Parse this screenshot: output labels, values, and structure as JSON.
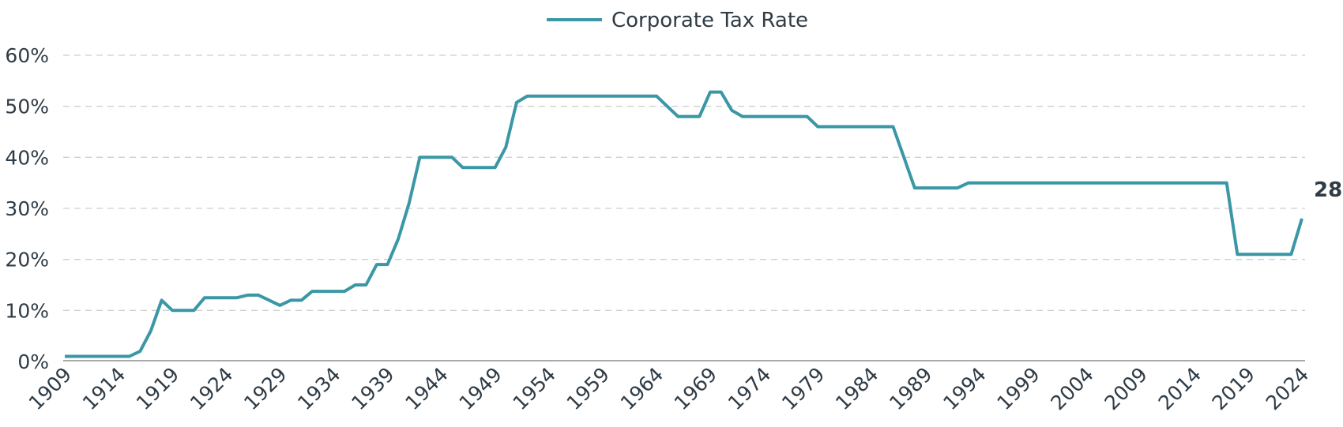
{
  "chart_data": {
    "type": "line",
    "title": "",
    "xlabel": "",
    "ylabel": "",
    "legend_position": "top-center",
    "grid": true,
    "ylim": [
      0,
      60
    ],
    "xlim": [
      1909,
      2024
    ],
    "y_ticks": [
      0,
      10,
      20,
      30,
      40,
      50,
      60
    ],
    "y_tick_labels": [
      "0%",
      "10%",
      "20%",
      "30%",
      "40%",
      "50%",
      "60%"
    ],
    "x_tick_labels": [
      "1909",
      "1914",
      "1919",
      "1924",
      "1929",
      "1934",
      "1939",
      "1944",
      "1949",
      "1954",
      "1959",
      "1964",
      "1969",
      "1974",
      "1979",
      "1984",
      "1989",
      "1994",
      "1999",
      "2004",
      "2009",
      "2014",
      "2019",
      "2024"
    ],
    "end_label": "28",
    "series": [
      {
        "name": "Corporate Tax Rate",
        "color": "#3a97a5",
        "x": [
          1909,
          1912,
          1913,
          1915,
          1916,
          1917,
          1918,
          1919,
          1920,
          1921,
          1922,
          1923,
          1924,
          1925,
          1926,
          1927,
          1928,
          1929,
          1930,
          1931,
          1932,
          1933,
          1934,
          1935,
          1936,
          1937,
          1938,
          1939,
          1940,
          1941,
          1942,
          1943,
          1944,
          1945,
          1946,
          1947,
          1948,
          1949,
          1950,
          1951,
          1952,
          1953,
          1960,
          1963,
          1964,
          1965,
          1966,
          1967,
          1968,
          1969,
          1970,
          1971,
          1972,
          1977,
          1978,
          1979,
          1982,
          1986,
          1987,
          1988,
          1990,
          1992,
          1993,
          2016,
          2017,
          2018,
          2022,
          2023,
          2024
        ],
        "values": [
          1,
          1,
          1,
          1,
          2,
          6,
          12,
          10,
          10,
          10,
          12.5,
          12.5,
          12.5,
          12.5,
          13,
          13,
          12,
          11,
          12,
          12,
          13.75,
          13.75,
          13.75,
          13.75,
          15,
          15,
          19,
          19,
          24,
          31,
          40,
          40,
          40,
          40,
          38,
          38,
          38,
          38,
          42,
          50.75,
          52,
          52,
          52,
          52,
          52,
          50,
          48,
          48,
          48,
          52.8,
          52.8,
          49.2,
          48,
          48,
          48,
          46,
          46,
          46,
          40,
          34,
          34,
          34,
          35,
          35,
          35,
          21,
          21,
          21,
          28
        ]
      }
    ]
  }
}
